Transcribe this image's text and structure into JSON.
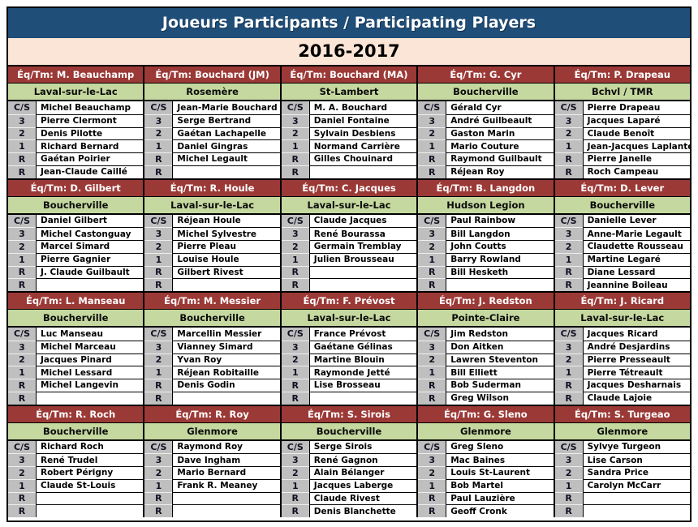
{
  "header": {
    "title": "Joueurs Participants / Participating Players",
    "season": "2016-2017"
  },
  "labels": {
    "team_prefix": "Éq/Tm:"
  },
  "positions": [
    "C/S",
    "3",
    "2",
    "1",
    "R",
    "R"
  ],
  "colors": {
    "header_bg": "#1F4E79",
    "season_bg": "#FBE5D6",
    "team_header_bg": "#9B3936",
    "club_bg": "#C5D89F",
    "position_bg": "#BFBFBF"
  },
  "teams": [
    {
      "name": "M. Beauchamp",
      "club": "Laval-sur-le-Lac",
      "players": [
        "Michel Beauchamp",
        "Pierre Clermont",
        "Denis Pilotte",
        "Richard Bernard",
        "Gaétan Poirier",
        "Jean-Claude Caillé"
      ]
    },
    {
      "name": "Bouchard (JM)",
      "club": "Rosemère",
      "players": [
        "Jean-Marie Bouchard",
        "Serge Bertrand",
        "Gaétan Lachapelle",
        "Daniel Gingras",
        "Michel Legault",
        ""
      ]
    },
    {
      "name": "Bouchard (MA)",
      "club": "St-Lambert",
      "players": [
        "M. A. Bouchard",
        "Daniel Fontaine",
        "Sylvain Desbiens",
        "Normand Carrière",
        "Gilles Chouinard",
        ""
      ]
    },
    {
      "name": "G. Cyr",
      "club": "Boucherville",
      "players": [
        "Gérald Cyr",
        "André Guilbeault",
        "Gaston Marin",
        "Mario Couture",
        "Raymond Guilbault",
        "Réjean Roy"
      ]
    },
    {
      "name": "P. Drapeau",
      "club": "Bchvl / TMR",
      "players": [
        "Pierre Drapeau",
        "Jacques Laparé",
        "Claude Benoît",
        "Jean-Jacques Laplante",
        "Pierre Janelle",
        "Roch Campeau"
      ]
    },
    {
      "name": "D. Gilbert",
      "club": "Boucherville",
      "players": [
        "Daniel Gilbert",
        "Michel Castonguay",
        "Marcel Simard",
        "Pierre Gagnier",
        "J. Claude Guilbault",
        ""
      ]
    },
    {
      "name": "R. Houle",
      "club": "Laval-sur-le-Lac",
      "players": [
        "Réjean Houle",
        "Michel Sylvestre",
        "Pierre Pleau",
        "Louise Houle",
        "Gilbert Rivest",
        ""
      ]
    },
    {
      "name": "C. Jacques",
      "club": "Laval-sur-le-Lac",
      "players": [
        "Claude Jacques",
        "René Bourassa",
        "Germain Tremblay",
        "Julien Brousseau",
        "",
        ""
      ]
    },
    {
      "name": "B. Langdon",
      "club": "Hudson Legion",
      "players": [
        "Paul Rainbow",
        "Bill Langdon",
        "John Coutts",
        "Barry Rowland",
        "Bill Hesketh",
        ""
      ]
    },
    {
      "name": "D. Lever",
      "club": "Boucherville",
      "players": [
        "Danielle Lever",
        "Anne-Marie Legault",
        "Claudette Rousseau",
        "Martine Legaré",
        "Diane Lessard",
        "Jeannine Boileau"
      ]
    },
    {
      "name": "L. Manseau",
      "club": "Boucherville",
      "players": [
        "Luc Manseau",
        "Michel Marceau",
        "Jacques Pinard",
        "Michel Lessard",
        "Michel Langevin",
        ""
      ]
    },
    {
      "name": "M. Messier",
      "club": "Boucherville",
      "players": [
        "Marcellin Messier",
        "Vianney Simard",
        "Yvan Roy",
        "Réjean Robitaille",
        "Denis Godin",
        ""
      ]
    },
    {
      "name": "F. Prévost",
      "club": "Laval-sur-le-Lac",
      "players": [
        "France Prévost",
        "Gaétane Gélinas",
        "Martine Blouin",
        "Raymonde Jetté",
        "Lise Brosseau",
        ""
      ]
    },
    {
      "name": "J. Redston",
      "club": "Pointe-Claire",
      "players": [
        "Jim Redston",
        "Don Aitken",
        "Lawren Steventon",
        "Bill Elliett",
        "Bob Suderman",
        "Greg Wilson"
      ]
    },
    {
      "name": "J. Ricard",
      "club": "Laval-sur-le-Lac",
      "players": [
        "Jacques Ricard",
        "André Desjardins",
        "Pierre Presseault",
        "Pierre Tétreault",
        "Jacques Desharnais",
        "Claude Lajoie"
      ]
    },
    {
      "name": "R. Roch",
      "club": "Boucherville",
      "players": [
        "Richard Roch",
        "René Trudel",
        "Robert Périgny",
        "Claude St-Louis",
        "",
        ""
      ]
    },
    {
      "name": "R. Roy",
      "club": "Glenmore",
      "players": [
        "Raymond Roy",
        "Dave Ingham",
        "Mario Bernard",
        "Frank R. Meaney",
        "",
        ""
      ]
    },
    {
      "name": "S. Sirois",
      "club": "Boucherville",
      "players": [
        "Serge Sirois",
        "René Gagnon",
        "Alain Bélanger",
        "Jacques Laberge",
        "Claude Rivest",
        "Denis Blanchette"
      ]
    },
    {
      "name": "G. Sleno",
      "club": "Glenmore",
      "players": [
        "Greg Sleno",
        "Mac Baines",
        "Louis St-Laurent",
        "Bob Martel",
        "Paul Lauzière",
        "Geoff Cronk"
      ]
    },
    {
      "name": "S. Turgeao",
      "club": "Glenmore",
      "players": [
        "Sylvye Turgeon",
        "Lise Carson",
        "Sandra Price",
        "Carolyn McCarr",
        "",
        ""
      ]
    }
  ]
}
